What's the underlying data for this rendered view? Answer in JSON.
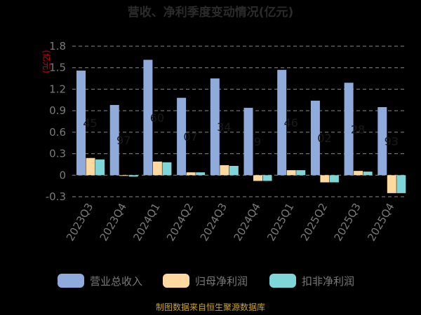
{
  "colors": {
    "background": "#000000",
    "grid": "#8a8a8a",
    "series": [
      "#8eabdc",
      "#fdd9a0",
      "#7fd6d8"
    ],
    "title": "#2b2b2b",
    "unit": "#d40000",
    "source": "#c9a227"
  },
  "chart_data": {
    "type": "bar",
    "title": "营收、净利季度变动情况(亿元)",
    "unit_label": "(亿元)",
    "xlabel": "",
    "ylabel": "",
    "categories": [
      "2023Q3",
      "2023Q4",
      "2024Q1",
      "2024Q2",
      "2024Q3",
      "2024Q4",
      "2025Q1",
      "2025Q2",
      "2025Q3",
      "2025Q4"
    ],
    "ylim": [
      -0.3,
      1.8
    ],
    "yticks": [
      "1.8",
      "1.5",
      "1.2",
      "0.9",
      "0.6",
      "0.3",
      "0",
      "-0.3"
    ],
    "ytick_values": [
      1.8,
      1.5,
      1.2,
      0.9,
      0.6,
      0.3,
      0,
      -0.3
    ],
    "grid": true,
    "legend_position": "bottom",
    "series": [
      {
        "name": "营业总收入",
        "values": [
          1.46,
          0.98,
          1.61,
          1.08,
          1.35,
          0.94,
          1.47,
          1.04,
          1.29,
          0.95
        ]
      },
      {
        "name": "归母净利润",
        "values": [
          0.24,
          -0.01,
          0.19,
          0.04,
          0.14,
          -0.08,
          0.07,
          -0.1,
          0.06,
          -0.25
        ]
      },
      {
        "name": "扣非净利润",
        "values": [
          0.22,
          -0.02,
          0.18,
          0.04,
          0.13,
          -0.08,
          0.07,
          -0.1,
          0.05,
          -0.25
        ]
      }
    ],
    "data_labels": [
      "45",
      "97",
      "60",
      "07",
      "34",
      "9",
      "46",
      "02",
      "28",
      "93"
    ],
    "source": "制图数据来自恒生聚源数据库"
  }
}
